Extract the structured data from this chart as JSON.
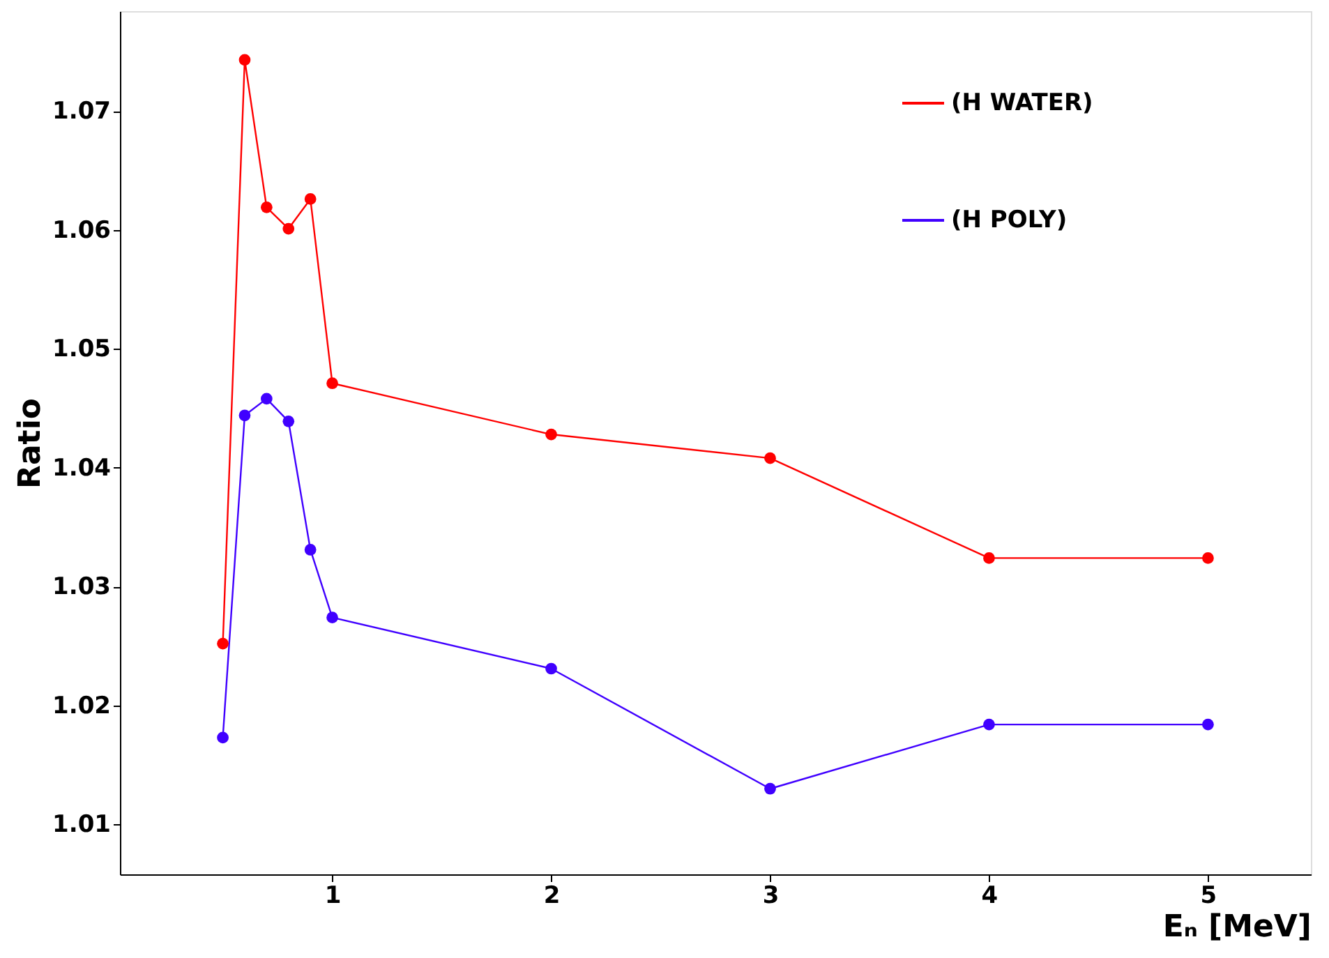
{
  "chart_data": {
    "type": "line",
    "xlabel": "Eₙ [MeV]",
    "ylabel": "Ratio",
    "x": [
      0.5,
      0.6,
      0.7,
      0.8,
      0.9,
      1,
      2,
      3,
      4,
      5
    ],
    "series": [
      {
        "name": "(H WATER)",
        "color": "#ff0000",
        "values": [
          1.0252,
          1.0743,
          1.0619,
          1.0601,
          1.0626,
          1.0471,
          1.0428,
          1.0408,
          1.0324,
          1.0324
        ]
      },
      {
        "name": "(H POLY)",
        "color": "#4000ff",
        "values": [
          1.0173,
          1.0444,
          1.0458,
          1.0439,
          1.0331,
          1.0274,
          1.0231,
          1.013,
          1.0184,
          1.0184
        ]
      }
    ],
    "xlim": [
      0.03,
      5.47
    ],
    "xticks": [
      1,
      2,
      3,
      4,
      5
    ],
    "ylim": [
      1.0058,
      1.0784
    ],
    "yticks": [
      1.01,
      1.02,
      1.03,
      1.04,
      1.05,
      1.06,
      1.07
    ],
    "grid": false,
    "legend": "top right",
    "marker": "circle",
    "line_style": "solid"
  }
}
